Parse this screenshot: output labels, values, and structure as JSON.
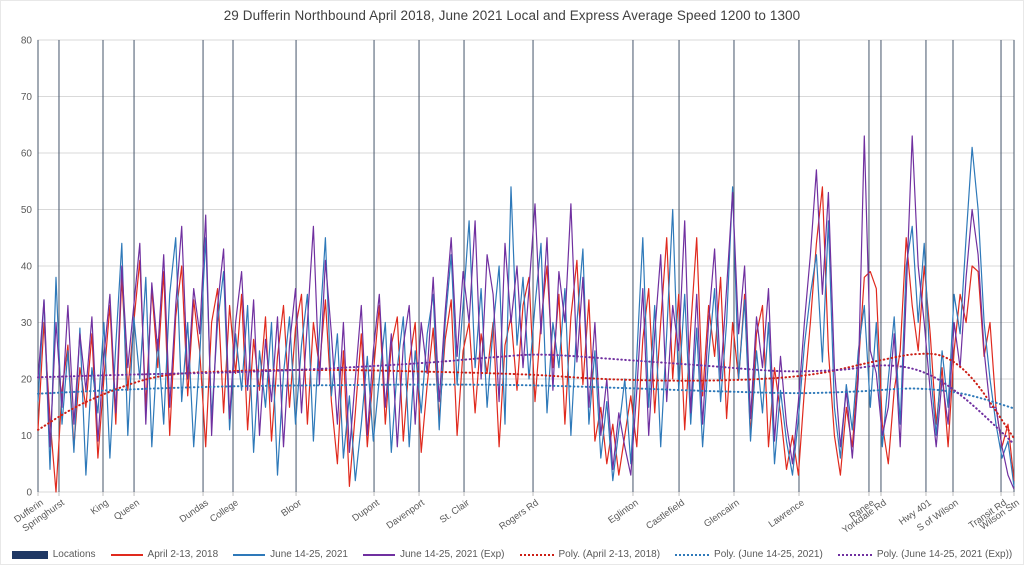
{
  "chart_data": {
    "type": "line",
    "title": "29 Dufferin Northbound April 2018, June 2021 Local and Express Average Speed 1200 to 1300",
    "ylim": [
      0,
      80
    ],
    "y_ticks": [
      0,
      10,
      20,
      30,
      40,
      50,
      60,
      70,
      80
    ],
    "grid": "horizontal",
    "legend_position": "bottom",
    "locations": [
      {
        "name": "Dufferin",
        "x": 0.0
      },
      {
        "name": "Springhurst",
        "x": 0.0215
      },
      {
        "name": "King",
        "x": 0.0666
      },
      {
        "name": "Queen",
        "x": 0.0984
      },
      {
        "name": "Dundas",
        "x": 0.1691
      },
      {
        "name": "College",
        "x": 0.1998
      },
      {
        "name": "Bloor",
        "x": 0.2644
      },
      {
        "name": "Dupont",
        "x": 0.3443
      },
      {
        "name": "Davenport",
        "x": 0.3904
      },
      {
        "name": "St. Clair",
        "x": 0.4365
      },
      {
        "name": "Rogers Rd",
        "x": 0.5072
      },
      {
        "name": "Eglinton",
        "x": 0.6096
      },
      {
        "name": "Castlefield",
        "x": 0.6568
      },
      {
        "name": "Glencairn",
        "x": 0.7131
      },
      {
        "name": "Lawrence",
        "x": 0.7797
      },
      {
        "name": "Ranee",
        "x": 0.8514
      },
      {
        "name": "Yorkdale Rd",
        "x": 0.8637
      },
      {
        "name": "Hwy 401",
        "x": 0.9098
      },
      {
        "name": "S of Wilson",
        "x": 0.9375
      },
      {
        "name": "Transit Rd",
        "x": 0.9867
      },
      {
        "name": "Wilson Stn",
        "x": 1.0
      }
    ],
    "series": [
      {
        "name": "April 2-13, 2018",
        "color": "#E02A1E",
        "values": [
          11,
          30,
          13,
          0,
          18,
          26,
          8,
          22,
          15,
          28,
          6,
          20,
          33,
          12,
          38,
          18,
          30,
          41,
          15,
          36,
          22,
          39,
          10,
          31,
          40,
          17,
          34,
          25,
          8,
          30,
          36,
          14,
          33,
          21,
          35,
          11,
          27,
          18,
          31,
          9,
          24,
          33,
          15,
          29,
          35,
          12,
          30,
          22,
          34,
          16,
          5,
          25,
          1,
          14,
          28,
          8,
          21,
          33,
          12,
          26,
          31,
          9,
          23,
          30,
          7,
          19,
          29,
          13,
          27,
          34,
          10,
          25,
          30,
          14,
          28,
          21,
          30,
          8,
          26,
          31,
          18,
          33,
          38,
          16,
          30,
          40,
          22,
          35,
          12,
          31,
          41,
          19,
          34,
          9,
          15,
          5,
          12,
          3,
          10,
          17,
          8,
          27,
          36,
          14,
          30,
          45,
          20,
          35,
          11,
          29,
          45,
          17,
          33,
          24,
          38,
          13,
          30,
          20,
          35,
          10,
          28,
          33,
          8,
          22,
          14,
          4,
          10,
          3,
          18,
          30,
          44,
          54,
          25,
          10,
          3,
          15,
          8,
          22,
          38,
          39,
          36,
          12,
          5,
          18,
          25,
          45,
          33,
          25,
          40,
          28,
          12,
          22,
          8,
          25,
          35,
          30,
          40,
          39,
          24,
          30,
          15,
          8,
          12,
          2
        ]
      },
      {
        "name": "June 14-25, 2021",
        "color": "#2E79B9",
        "values": [
          16,
          34,
          4,
          38,
          12,
          25,
          7,
          29,
          3,
          22,
          14,
          30,
          6,
          26,
          44,
          10,
          31,
          20,
          38,
          8,
          27,
          12,
          35,
          45,
          16,
          30,
          8,
          24,
          45,
          13,
          30,
          39,
          11,
          28,
          18,
          33,
          7,
          25,
          15,
          30,
          3,
          21,
          31,
          12,
          26,
          35,
          9,
          28,
          45,
          17,
          28,
          6,
          17,
          2,
          12,
          24,
          9,
          20,
          30,
          7,
          22,
          31,
          8,
          25,
          14,
          28,
          35,
          11,
          30,
          42,
          19,
          33,
          48,
          22,
          36,
          15,
          29,
          40,
          12,
          54,
          26,
          38,
          20,
          33,
          44,
          14,
          30,
          22,
          36,
          10,
          30,
          43,
          12,
          25,
          6,
          16,
          2,
          11,
          20,
          5,
          24,
          45,
          15,
          33,
          8,
          28,
          50,
          18,
          35,
          12,
          29,
          8,
          24,
          36,
          16,
          30,
          54,
          20,
          34,
          9,
          25,
          14,
          30,
          5,
          18,
          9,
          3,
          13,
          26,
          35,
          42,
          23,
          48,
          15,
          6,
          19,
          11,
          25,
          33,
          15,
          30,
          8,
          20,
          31,
          12,
          40,
          47,
          30,
          44,
          22,
          10,
          25,
          15,
          35,
          28,
          45,
          61,
          50,
          30,
          20,
          12,
          6,
          9,
          1
        ]
      },
      {
        "name": "June 14-25, 2021 (Exp)",
        "color": "#7030A0",
        "values": [
          20,
          34,
          8,
          30,
          15,
          33,
          12,
          28,
          18,
          31,
          9,
          24,
          35,
          14,
          40,
          22,
          33,
          44,
          12,
          37,
          25,
          42,
          15,
          33,
          47,
          20,
          36,
          28,
          49,
          10,
          33,
          43,
          13,
          30,
          39,
          18,
          34,
          10,
          27,
          16,
          31,
          8,
          26,
          36,
          14,
          30,
          47,
          19,
          41,
          28,
          12,
          30,
          7,
          20,
          33,
          10,
          25,
          35,
          15,
          28,
          8,
          26,
          33,
          12,
          30,
          21,
          38,
          16,
          32,
          45,
          24,
          39,
          30,
          48,
          20,
          42,
          35,
          16,
          44,
          30,
          40,
          22,
          36,
          51,
          28,
          45,
          18,
          39,
          30,
          51,
          23,
          38,
          15,
          30,
          10,
          20,
          4,
          14,
          8,
          3,
          18,
          36,
          10,
          28,
          42,
          16,
          33,
          25,
          48,
          14,
          35,
          12,
          30,
          43,
          20,
          36,
          53,
          28,
          40,
          13,
          31,
          22,
          36,
          9,
          24,
          12,
          5,
          16,
          30,
          42,
          57,
          35,
          53,
          22,
          8,
          18,
          6,
          20,
          63,
          25,
          21,
          10,
          15,
          28,
          8,
          35,
          63,
          40,
          30,
          18,
          8,
          20,
          12,
          30,
          22,
          38,
          50,
          42,
          25,
          15,
          15,
          8,
          3,
          0.5
        ]
      }
    ],
    "trend_series": [
      {
        "name": "Poly. (April 2-13, 2018)",
        "color": "#CC1F16",
        "points": [
          [
            0,
            11
          ],
          [
            0.05,
            16
          ],
          [
            0.12,
            20.3
          ],
          [
            0.2,
            21.4
          ],
          [
            0.3,
            21.6
          ],
          [
            0.4,
            21.3
          ],
          [
            0.5,
            20.8
          ],
          [
            0.58,
            20
          ],
          [
            0.66,
            19.7
          ],
          [
            0.74,
            20
          ],
          [
            0.8,
            21
          ],
          [
            0.86,
            23.2
          ],
          [
            0.9,
            24.4
          ],
          [
            0.93,
            23.8
          ],
          [
            0.96,
            19.5
          ],
          [
            1,
            9.5
          ]
        ]
      },
      {
        "name": "Poly. (June 14-25, 2021)",
        "color": "#2E79B9",
        "points": [
          [
            0,
            17.4
          ],
          [
            0.1,
            18.2
          ],
          [
            0.2,
            18.7
          ],
          [
            0.3,
            18.9
          ],
          [
            0.4,
            19
          ],
          [
            0.5,
            18.9
          ],
          [
            0.6,
            18.4
          ],
          [
            0.7,
            17.8
          ],
          [
            0.78,
            17.5
          ],
          [
            0.84,
            17.8
          ],
          [
            0.9,
            18.3
          ],
          [
            0.95,
            17.3
          ],
          [
            1,
            14.8
          ]
        ]
      },
      {
        "name": "Poly. (June 14-25, 2021 (Exp))",
        "color": "#7030A0",
        "points": [
          [
            0,
            20.3
          ],
          [
            0.1,
            20.8
          ],
          [
            0.2,
            21.2
          ],
          [
            0.3,
            21.9
          ],
          [
            0.4,
            22.9
          ],
          [
            0.47,
            23.9
          ],
          [
            0.52,
            24.3
          ],
          [
            0.6,
            23.4
          ],
          [
            0.68,
            22.4
          ],
          [
            0.76,
            21.4
          ],
          [
            0.82,
            21.6
          ],
          [
            0.87,
            22.4
          ],
          [
            0.91,
            21
          ],
          [
            0.95,
            16.5
          ],
          [
            1,
            8.5
          ]
        ]
      }
    ],
    "locations_line_color": "#44546A",
    "colors": {
      "gridline": "#D9D9D9",
      "axis": "#BFBFBF",
      "tick_text": "#595959",
      "title_text": "#404040",
      "navy": "#1F3864"
    }
  },
  "legend": [
    {
      "label": "Locations",
      "marker": "bar",
      "color": "#1F3864"
    },
    {
      "label": "April 2-13, 2018",
      "marker": "line",
      "color": "#E02A1E"
    },
    {
      "label": "June 14-25, 2021",
      "marker": "line",
      "color": "#2E79B9"
    },
    {
      "label": "June 14-25, 2021 (Exp)",
      "marker": "line",
      "color": "#7030A0"
    },
    {
      "label": "Poly. (April 2-13, 2018)",
      "marker": "dots",
      "color": "#CC1F16"
    },
    {
      "label": "Poly. (June 14-25, 2021)",
      "marker": "dots",
      "color": "#2E79B9"
    },
    {
      "label": "Poly. (June 14-25, 2021 (Exp))",
      "marker": "dots",
      "color": "#7030A0"
    }
  ]
}
